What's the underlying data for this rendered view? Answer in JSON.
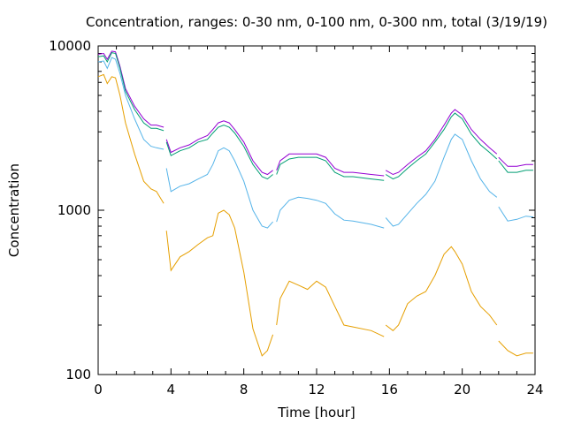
{
  "chart_data": {
    "type": "line",
    "title": "Concentration, ranges: 0-30 nm, 0-100 nm, 0-300 nm, total (3/19/19)",
    "xlabel": "Time [hour]",
    "ylabel": "Concentration",
    "xlim": [
      0,
      24
    ],
    "ylim": [
      100,
      10000
    ],
    "y_scale": "log",
    "grid": false,
    "legend": "none",
    "x_ticks": [
      0,
      4,
      8,
      12,
      16,
      20,
      24
    ],
    "x_tick_labels": [
      "0",
      "4",
      "8",
      "12",
      "16",
      "20",
      "24"
    ],
    "y_ticks": [
      100,
      1000,
      10000
    ],
    "y_tick_labels": [
      "100",
      "1000",
      "10000"
    ],
    "series": [
      {
        "color": "#9400d3",
        "segments": [
          [
            [
              0,
              8900
            ],
            [
              0.3,
              9000
            ],
            [
              0.5,
              8300
            ],
            [
              0.75,
              9300
            ],
            [
              0.95,
              9200
            ],
            [
              1.2,
              7500
            ],
            [
              1.5,
              5500
            ],
            [
              2,
              4300
            ],
            [
              2.5,
              3600
            ],
            [
              2.9,
              3300
            ],
            [
              3.2,
              3300
            ],
            [
              3.6,
              3200
            ]
          ],
          [
            [
              3.75,
              2700
            ],
            [
              4,
              2250
            ],
            [
              4.5,
              2400
            ],
            [
              5,
              2500
            ],
            [
              5.5,
              2700
            ],
            [
              6,
              2850
            ],
            [
              6.3,
              3100
            ],
            [
              6.6,
              3400
            ],
            [
              6.9,
              3500
            ],
            [
              7.2,
              3400
            ],
            [
              7.5,
              3100
            ],
            [
              8,
              2600
            ],
            [
              8.5,
              2000
            ],
            [
              9,
              1700
            ],
            [
              9.3,
              1650
            ],
            [
              9.6,
              1750
            ]
          ],
          [
            [
              9.8,
              1750
            ],
            [
              10,
              2000
            ],
            [
              10.5,
              2200
            ],
            [
              11,
              2200
            ],
            [
              11.5,
              2200
            ],
            [
              12,
              2200
            ],
            [
              12.5,
              2100
            ],
            [
              13,
              1800
            ],
            [
              13.5,
              1700
            ],
            [
              14,
              1700
            ],
            [
              15,
              1650
            ],
            [
              15.7,
              1620
            ]
          ],
          [
            [
              15.8,
              1750
            ],
            [
              16.2,
              1650
            ],
            [
              16.5,
              1700
            ],
            [
              17,
              1900
            ],
            [
              17.5,
              2100
            ],
            [
              18,
              2300
            ],
            [
              18.5,
              2700
            ],
            [
              19,
              3300
            ],
            [
              19.4,
              3900
            ],
            [
              19.6,
              4100
            ],
            [
              20,
              3800
            ],
            [
              20.5,
              3100
            ],
            [
              21,
              2700
            ],
            [
              21.5,
              2400
            ],
            [
              21.9,
              2200
            ]
          ],
          [
            [
              22,
              2100
            ],
            [
              22.5,
              1850
            ],
            [
              23,
              1850
            ],
            [
              23.5,
              1900
            ],
            [
              23.9,
              1900
            ]
          ]
        ]
      },
      {
        "color": "#009e73",
        "segments": [
          [
            [
              0,
              8600
            ],
            [
              0.3,
              8700
            ],
            [
              0.5,
              8000
            ],
            [
              0.75,
              9100
            ],
            [
              0.95,
              9000
            ],
            [
              1.2,
              7300
            ],
            [
              1.5,
              5300
            ],
            [
              2,
              4100
            ],
            [
              2.5,
              3400
            ],
            [
              2.9,
              3150
            ],
            [
              3.2,
              3150
            ],
            [
              3.6,
              3050
            ]
          ],
          [
            [
              3.75,
              2600
            ],
            [
              4,
              2150
            ],
            [
              4.5,
              2300
            ],
            [
              5,
              2400
            ],
            [
              5.5,
              2600
            ],
            [
              6,
              2700
            ],
            [
              6.3,
              2950
            ],
            [
              6.6,
              3200
            ],
            [
              6.9,
              3300
            ],
            [
              7.2,
              3200
            ],
            [
              7.5,
              2950
            ],
            [
              8,
              2450
            ],
            [
              8.5,
              1900
            ],
            [
              9,
              1600
            ],
            [
              9.3,
              1550
            ],
            [
              9.6,
              1650
            ]
          ],
          [
            [
              9.8,
              1650
            ],
            [
              10,
              1900
            ],
            [
              10.5,
              2050
            ],
            [
              11,
              2100
            ],
            [
              11.5,
              2100
            ],
            [
              12,
              2100
            ],
            [
              12.5,
              2000
            ],
            [
              13,
              1700
            ],
            [
              13.5,
              1600
            ],
            [
              14,
              1600
            ],
            [
              15,
              1550
            ],
            [
              15.7,
              1520
            ]
          ],
          [
            [
              15.8,
              1650
            ],
            [
              16.2,
              1550
            ],
            [
              16.5,
              1600
            ],
            [
              17,
              1800
            ],
            [
              17.5,
              2000
            ],
            [
              18,
              2200
            ],
            [
              18.5,
              2600
            ],
            [
              19,
              3100
            ],
            [
              19.4,
              3700
            ],
            [
              19.6,
              3900
            ],
            [
              20,
              3600
            ],
            [
              20.5,
              2900
            ],
            [
              21,
              2500
            ],
            [
              21.5,
              2250
            ],
            [
              21.9,
              2050
            ]
          ],
          [
            [
              22,
              2000
            ],
            [
              22.5,
              1700
            ],
            [
              23,
              1700
            ],
            [
              23.5,
              1750
            ],
            [
              23.9,
              1750
            ]
          ]
        ]
      },
      {
        "color": "#56b4e9",
        "segments": [
          [
            [
              0,
              8000
            ],
            [
              0.3,
              8100
            ],
            [
              0.5,
              7300
            ],
            [
              0.75,
              8500
            ],
            [
              0.95,
              8300
            ],
            [
              1.2,
              6800
            ],
            [
              1.5,
              5000
            ],
            [
              2,
              3600
            ],
            [
              2.5,
              2700
            ],
            [
              2.9,
              2450
            ],
            [
              3.2,
              2400
            ],
            [
              3.6,
              2350
            ]
          ],
          [
            [
              3.75,
              1800
            ],
            [
              4,
              1300
            ],
            [
              4.5,
              1400
            ],
            [
              5,
              1450
            ],
            [
              5.5,
              1550
            ],
            [
              6,
              1650
            ],
            [
              6.3,
              1900
            ],
            [
              6.6,
              2300
            ],
            [
              6.9,
              2400
            ],
            [
              7.2,
              2300
            ],
            [
              7.5,
              2000
            ],
            [
              8,
              1500
            ],
            [
              8.5,
              1000
            ],
            [
              9,
              800
            ],
            [
              9.3,
              780
            ],
            [
              9.6,
              850
            ]
          ],
          [
            [
              9.8,
              850
            ],
            [
              10,
              1000
            ],
            [
              10.5,
              1150
            ],
            [
              11,
              1200
            ],
            [
              11.5,
              1180
            ],
            [
              12,
              1150
            ],
            [
              12.5,
              1100
            ],
            [
              13,
              950
            ],
            [
              13.5,
              870
            ],
            [
              14,
              860
            ],
            [
              15,
              820
            ],
            [
              15.7,
              780
            ]
          ],
          [
            [
              15.8,
              900
            ],
            [
              16.2,
              800
            ],
            [
              16.5,
              820
            ],
            [
              17,
              950
            ],
            [
              17.5,
              1100
            ],
            [
              18,
              1250
            ],
            [
              18.5,
              1500
            ],
            [
              19,
              2100
            ],
            [
              19.4,
              2700
            ],
            [
              19.6,
              2900
            ],
            [
              20,
              2700
            ],
            [
              20.5,
              2000
            ],
            [
              21,
              1550
            ],
            [
              21.5,
              1300
            ],
            [
              21.9,
              1200
            ]
          ],
          [
            [
              22,
              1050
            ],
            [
              22.5,
              860
            ],
            [
              23,
              880
            ],
            [
              23.5,
              920
            ],
            [
              23.9,
              910
            ]
          ]
        ]
      },
      {
        "color": "#e69f00",
        "segments": [
          [
            [
              0,
              6500
            ],
            [
              0.3,
              6700
            ],
            [
              0.5,
              5900
            ],
            [
              0.75,
              6500
            ],
            [
              0.95,
              6400
            ],
            [
              1.2,
              5000
            ],
            [
              1.5,
              3400
            ],
            [
              2,
              2200
            ],
            [
              2.5,
              1500
            ],
            [
              2.9,
              1350
            ],
            [
              3.2,
              1300
            ],
            [
              3.6,
              1100
            ]
          ],
          [
            [
              3.75,
              750
            ],
            [
              4,
              430
            ],
            [
              4.5,
              520
            ],
            [
              5,
              560
            ],
            [
              5.5,
              620
            ],
            [
              6,
              680
            ],
            [
              6.3,
              700
            ],
            [
              6.6,
              960
            ],
            [
              6.9,
              1000
            ],
            [
              7.2,
              940
            ],
            [
              7.5,
              780
            ],
            [
              8,
              420
            ],
            [
              8.5,
              190
            ],
            [
              9,
              130
            ],
            [
              9.3,
              140
            ],
            [
              9.6,
              175
            ]
          ],
          [
            [
              9.8,
              200
            ],
            [
              10,
              290
            ],
            [
              10.5,
              370
            ],
            [
              11,
              350
            ],
            [
              11.5,
              330
            ],
            [
              12,
              370
            ],
            [
              12.5,
              340
            ],
            [
              13,
              260
            ],
            [
              13.5,
              200
            ],
            [
              14,
              195
            ],
            [
              15,
              185
            ],
            [
              15.7,
              170
            ]
          ],
          [
            [
              15.8,
              200
            ],
            [
              16.2,
              185
            ],
            [
              16.5,
              200
            ],
            [
              17,
              270
            ],
            [
              17.5,
              300
            ],
            [
              18,
              320
            ],
            [
              18.5,
              400
            ],
            [
              19,
              540
            ],
            [
              19.4,
              600
            ],
            [
              19.6,
              560
            ],
            [
              20,
              470
            ],
            [
              20.5,
              320
            ],
            [
              21,
              260
            ],
            [
              21.5,
              230
            ],
            [
              21.9,
              200
            ]
          ],
          [
            [
              22,
              160
            ],
            [
              22.5,
              140
            ],
            [
              23,
              130
            ],
            [
              23.5,
              135
            ],
            [
              23.9,
              135
            ]
          ]
        ]
      }
    ]
  }
}
